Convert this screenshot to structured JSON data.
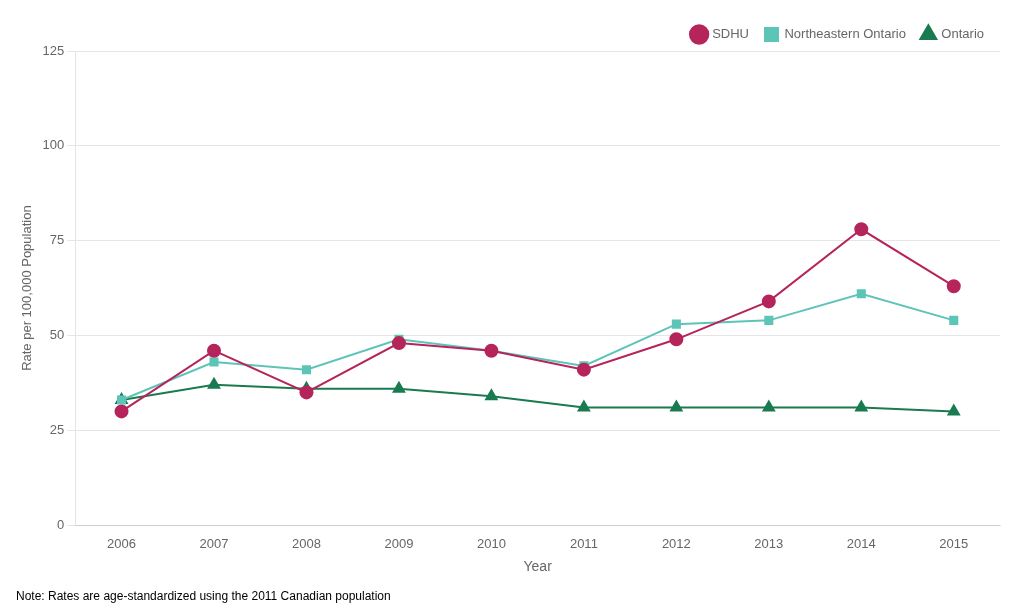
{
  "chart_data": {
    "type": "line",
    "x": [
      2006,
      2007,
      2008,
      2009,
      2010,
      2011,
      2012,
      2013,
      2014,
      2015
    ],
    "series": [
      {
        "name": "SDHU",
        "color": "#b5245a",
        "marker": "circle",
        "values": [
          30,
          46,
          35,
          48,
          46,
          41,
          49,
          59,
          78,
          63
        ]
      },
      {
        "name": "Northeastern Ontario",
        "color": "#5dc4b8",
        "marker": "square",
        "values": [
          33,
          43,
          41,
          49,
          46,
          42,
          53,
          54,
          61,
          54
        ]
      },
      {
        "name": "Ontario",
        "color": "#1a7a50",
        "marker": "triangle",
        "values": [
          33,
          37,
          36,
          36,
          34,
          31,
          31,
          31,
          31,
          30
        ]
      }
    ],
    "xlabel": "Year",
    "ylabel": "Rate per 100,000 Population",
    "xlim": [
      2005.5,
      2015.5
    ],
    "xticks": [
      2006,
      2007,
      2008,
      2009,
      2010,
      2011,
      2012,
      2013,
      2014,
      2015
    ],
    "ylim": [
      0,
      125
    ],
    "yticks": [
      0,
      25,
      50,
      75,
      100,
      125
    ],
    "grid": "y",
    "legend": "upper right",
    "annotation": "Note: Rates are age-standardized using the 2011 Canadian population"
  }
}
